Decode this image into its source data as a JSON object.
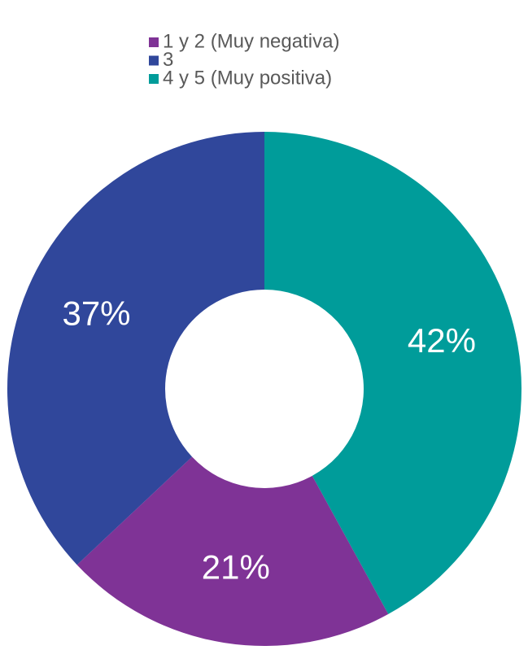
{
  "chart_data": {
    "type": "donut",
    "categories": [
      "1 y 2 (Muy negativa)",
      "3",
      "4 y 5 (Muy positiva)"
    ],
    "values": [
      21,
      37,
      42
    ],
    "value_labels": [
      "21%",
      "37%",
      "42%"
    ],
    "colors": [
      "#7f3396",
      "#30479b",
      "#009c9a"
    ],
    "legend": "top"
  }
}
